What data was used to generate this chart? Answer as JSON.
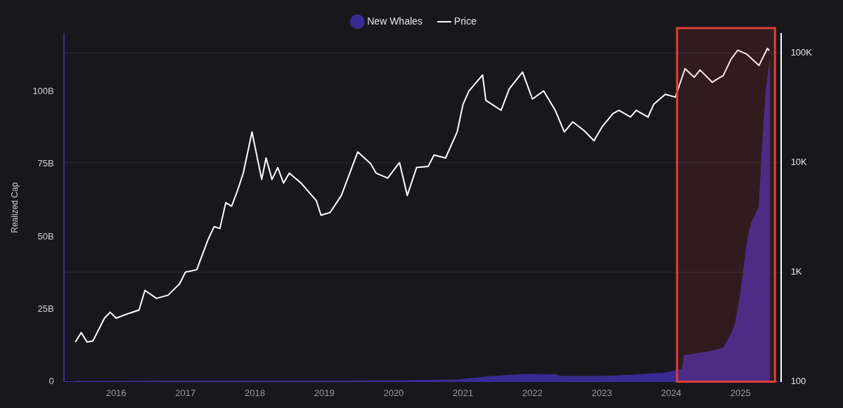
{
  "chart_data": {
    "type": "line",
    "ylabel": "Realized Cap",
    "legend": "top",
    "grid": "y",
    "xlim": [
      "2015-04",
      "2025-08"
    ],
    "bands": [
      {
        "axis": "x",
        "from": "2024-02",
        "to": "2025-07",
        "color": "#e0403a"
      }
    ],
    "xticks": [
      "2016",
      "2017",
      "2018",
      "2019",
      "2020",
      "2021",
      "2022",
      "2023",
      "2024",
      "2025"
    ],
    "ylim": [
      0,
      120
    ],
    "yticks": [
      0,
      {
        "value": 25,
        "label": "25B"
      },
      {
        "value": 50,
        "label": "50B"
      },
      {
        "value": 75,
        "label": "75B"
      },
      {
        "value": 100,
        "label": "100B"
      }
    ],
    "y2lim": [
      100,
      150000
    ],
    "y2ticks": [
      100,
      {
        "value": 1000,
        "label": "1K"
      },
      {
        "value": 10000,
        "label": "10K"
      },
      {
        "value": 100000,
        "label": "100K"
      }
    ],
    "log": "y2",
    "series": [
      {
        "name": "New Whales",
        "type": "area",
        "color": "#3c2e9e",
        "x": [
          "2015-06",
          "2016-01",
          "2017-01",
          "2018-01",
          "2019-01",
          "2020-01",
          "2020-12",
          "2021-03",
          "2021-06",
          "2021-12",
          "2022-05",
          "2022-06",
          "2023-01",
          "2023-06",
          "2023-09",
          "2023-12",
          "2024-02-10",
          "2024-03-01",
          "2024-03-10",
          "2024-05",
          "2024-08",
          "2024-10",
          "2024-11",
          "2024-12",
          "2025-01-01",
          "2025-01-20",
          "2025-02-10",
          "2025-03",
          "2025-04-08",
          "2025-04-25",
          "2025-05-15",
          "2025-06-05"
        ],
        "values": [
          0.1,
          0.1,
          0.2,
          0.2,
          0.2,
          0.3,
          0.6,
          1.2,
          1.8,
          2.5,
          2.4,
          1.8,
          1.8,
          2.2,
          2.6,
          3.0,
          4.0,
          4.5,
          9.0,
          9.5,
          10.5,
          11.5,
          15,
          19,
          30,
          40,
          50,
          55,
          60,
          80,
          100,
          111
        ]
      },
      {
        "name": "Price",
        "type": "line",
        "axis": "y2",
        "color": "#ffffff",
        "x": [
          "2015-06",
          "2015-07",
          "2015-08",
          "2015-09",
          "2015-11",
          "2015-12",
          "2016-01",
          "2016-03",
          "2016-05",
          "2016-06",
          "2016-08",
          "2016-10",
          "2016-12",
          "2017-01",
          "2017-03",
          "2017-05",
          "2017-06",
          "2017-07",
          "2017-08",
          "2017-09",
          "2017-10",
          "2017-11",
          "2017-12-17",
          "2018-02-06",
          "2018-03",
          "2018-04",
          "2018-05",
          "2018-06",
          "2018-07",
          "2018-09",
          "2018-11-20",
          "2018-12-15",
          "2019-02",
          "2019-04",
          "2019-06-26",
          "2019-09",
          "2019-10",
          "2019-12",
          "2020-02",
          "2020-03-13",
          "2020-05",
          "2020-07",
          "2020-08",
          "2020-10",
          "2020-12",
          "2021-01",
          "2021-02",
          "2021-04-14",
          "2021-05",
          "2021-07-20",
          "2021-09",
          "2021-11-10",
          "2022-01",
          "2022-03",
          "2022-05",
          "2022-06-18",
          "2022-08",
          "2022-10",
          "2022-11-21",
          "2023-01",
          "2023-03",
          "2023-04",
          "2023-06",
          "2023-07",
          "2023-09",
          "2023-10",
          "2023-12",
          "2024-01-23",
          "2024-03-14",
          "2024-05",
          "2024-06",
          "2024-08-05",
          "2024-09",
          "2024-10",
          "2024-11-12",
          "2024-12-17",
          "2025-02",
          "2025-04-08",
          "2025-05-22",
          "2025-06"
        ],
        "values": [
          230,
          280,
          230,
          235,
          380,
          430,
          380,
          415,
          450,
          680,
          575,
          615,
          780,
          1000,
          1050,
          2000,
          2600,
          2500,
          4300,
          4000,
          5500,
          8000,
          19000,
          7000,
          11000,
          7000,
          9000,
          6500,
          8000,
          6500,
          4500,
          3300,
          3500,
          5000,
          12500,
          9800,
          8000,
          7200,
          10000,
          5000,
          9000,
          9200,
          11700,
          11000,
          19000,
          34000,
          45000,
          63000,
          37000,
          30000,
          47000,
          67000,
          38000,
          45000,
          30000,
          19000,
          23500,
          19500,
          15800,
          21000,
          28000,
          30000,
          26000,
          30000,
          26000,
          34000,
          42000,
          39500,
          72000,
          60000,
          70000,
          54000,
          58000,
          62000,
          88000,
          106000,
          98000,
          77000,
          110000,
          105000
        ]
      }
    ]
  }
}
